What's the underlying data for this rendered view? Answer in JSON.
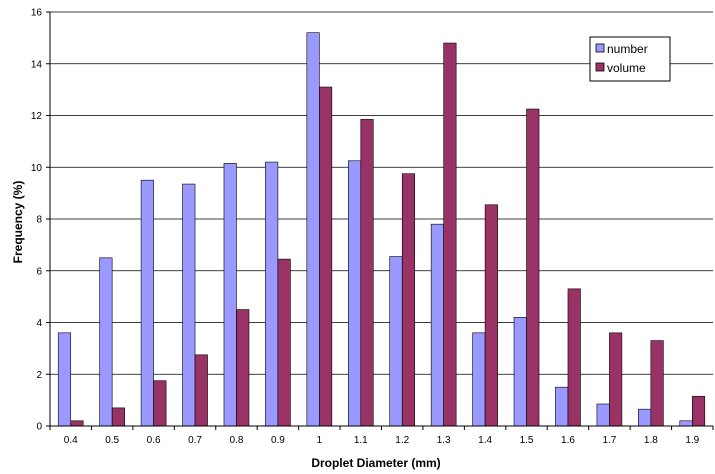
{
  "chart_data": {
    "type": "bar",
    "title": "",
    "xlabel": "Droplet Diameter (mm)",
    "ylabel": "Frequency (%)",
    "ylim": [
      0,
      16
    ],
    "yticks": [
      "0",
      "2",
      "4",
      "6",
      "8",
      "10",
      "12",
      "14",
      "16"
    ],
    "categories": [
      "0.4",
      "0.5",
      "0.6",
      "0.7",
      "0.8",
      "0.9",
      "1",
      "1.1",
      "1.2",
      "1.3",
      "1.4",
      "1.5",
      "1.6",
      "1.7",
      "1.8",
      "1.9"
    ],
    "series": [
      {
        "name": "number",
        "color": "#9999ff",
        "values": [
          3.6,
          6.5,
          9.5,
          9.35,
          10.15,
          10.2,
          15.2,
          10.25,
          6.55,
          7.8,
          3.6,
          4.2,
          1.5,
          0.85,
          0.65,
          0.2
        ]
      },
      {
        "name": "volume",
        "color": "#993366",
        "values": [
          0.2,
          0.7,
          1.75,
          2.75,
          4.5,
          6.45,
          13.1,
          11.85,
          9.75,
          14.8,
          8.55,
          12.25,
          5.3,
          3.6,
          3.3,
          1.15
        ]
      }
    ],
    "grid": true,
    "legend_position": "top-right"
  }
}
